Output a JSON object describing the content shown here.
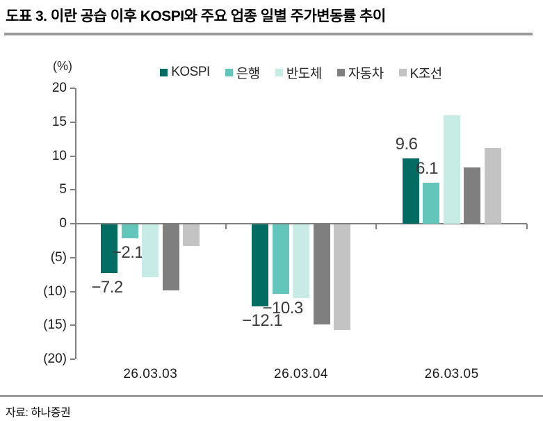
{
  "header": {
    "title": "도표 3. 이란 공습 이후 KOSPI와 주요 업종 일별 주가변동률 추이"
  },
  "footer": {
    "source": "자료: 하나증권"
  },
  "chart_data": {
    "type": "bar",
    "title": "",
    "unit_label": "(%)",
    "xlabel": "",
    "ylabel": "(%)",
    "ylim": [
      -20,
      20
    ],
    "grid": false,
    "legend_position": "top",
    "categories": [
      "26.03.03",
      "26.03.04",
      "26.03.05"
    ],
    "series": [
      {
        "id": "kospi",
        "name": "KOSPI",
        "color": "#026b62",
        "values": [
          -7.2,
          -12.1,
          9.6
        ],
        "show_labels": true,
        "labels": [
          "−7.2",
          "−12.1",
          "9.6"
        ]
      },
      {
        "id": "bank",
        "name": "은행",
        "color": "#62c6bb",
        "values": [
          -2.1,
          -10.3,
          6.1
        ],
        "show_labels": true,
        "labels": [
          "−2.1",
          "−10.3",
          "6.1"
        ]
      },
      {
        "id": "semiconductor",
        "name": "반도체",
        "color": "#c7ebe5",
        "values": [
          -7.8,
          -10.9,
          16.0
        ],
        "show_labels": false,
        "labels": []
      },
      {
        "id": "auto",
        "name": "자동차",
        "color": "#7f7f7f",
        "values": [
          -9.7,
          -14.8,
          8.3
        ],
        "show_labels": false,
        "labels": []
      },
      {
        "id": "k-shipbuilding",
        "name": "K조선",
        "color": "#c3c3c3",
        "values": [
          -3.2,
          -15.6,
          11.2
        ],
        "show_labels": false,
        "labels": []
      }
    ],
    "yticks": [
      {
        "v": 20,
        "label": "20"
      },
      {
        "v": 15,
        "label": "15"
      },
      {
        "v": 10,
        "label": "10"
      },
      {
        "v": 5,
        "label": "5"
      },
      {
        "v": 0,
        "label": "0"
      },
      {
        "v": -5,
        "label": "(5)"
      },
      {
        "v": -10,
        "label": "(10)"
      },
      {
        "v": -15,
        "label": "(15)"
      },
      {
        "v": -20,
        "label": "(20)"
      }
    ]
  }
}
